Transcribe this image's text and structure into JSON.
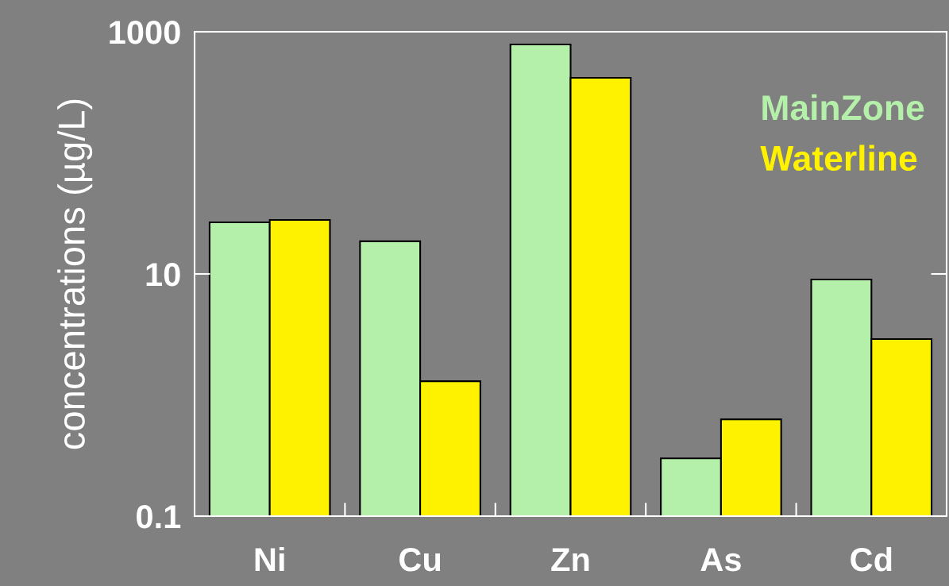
{
  "chart_data": {
    "type": "bar",
    "ylabel": "concentrations (µg/L)",
    "categories": [
      "Ni",
      "Cu",
      "Zn",
      "As",
      "Cd"
    ],
    "series": [
      {
        "name": "MainZone",
        "color": "#b4f0aa",
        "values": [
          26.7,
          18.6,
          785,
          0.3,
          9.0
        ]
      },
      {
        "name": "Waterline",
        "color": "#fff200",
        "values": [
          27.9,
          1.3,
          417,
          0.63,
          2.9
        ]
      }
    ],
    "log": "y",
    "ylim": [
      0.1,
      1000
    ],
    "yticks": [
      0.1,
      10,
      1000
    ],
    "grid": false,
    "legend": "top right"
  }
}
